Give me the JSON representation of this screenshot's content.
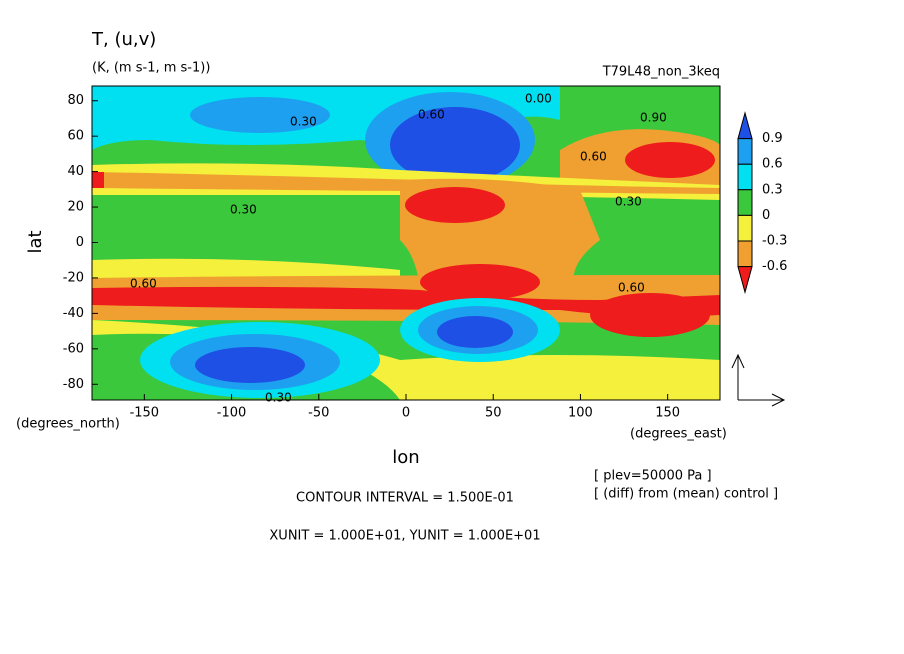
{
  "chart_data": {
    "type": "contour",
    "title": "T, (u,v)",
    "subtitle": "(K, (m s-1, m s-1))",
    "run_label": "T79L48_non_3keq",
    "x_label": "lon",
    "y_label": "lat",
    "x_unit": "(degrees_east)",
    "y_unit": "(degrees_north)",
    "xlim": [
      -180,
      180
    ],
    "xticks": [
      -150,
      -100,
      -50,
      0,
      50,
      100,
      150
    ],
    "ylim": [
      -90,
      90
    ],
    "yticks": [
      -80,
      -60,
      -40,
      -20,
      0,
      20,
      40,
      60,
      80
    ],
    "levels": [
      -0.6,
      -0.3,
      0,
      0.3,
      0.6,
      0.9
    ],
    "colors": [
      "#1e50e6",
      "#1ea0f0",
      "#00e0f0",
      "#3cc83c",
      "#f5f03c",
      "#f0a030",
      "#ee1c1c"
    ],
    "notes": [
      "[ plev=50000 Pa ]",
      "[ (diff) from (mean) control ]"
    ],
    "contour_interval": "CONTOUR INTERVAL = 1.500E-01",
    "units_note": "XUNIT = 1.000E+01, YUNIT = 1.000E+01",
    "contour_labels": [
      "0.00",
      "0.30",
      "0.60",
      "0.90",
      "0.30",
      "0.60",
      "0.30",
      "0.60",
      "0.30",
      "0.60"
    ]
  }
}
